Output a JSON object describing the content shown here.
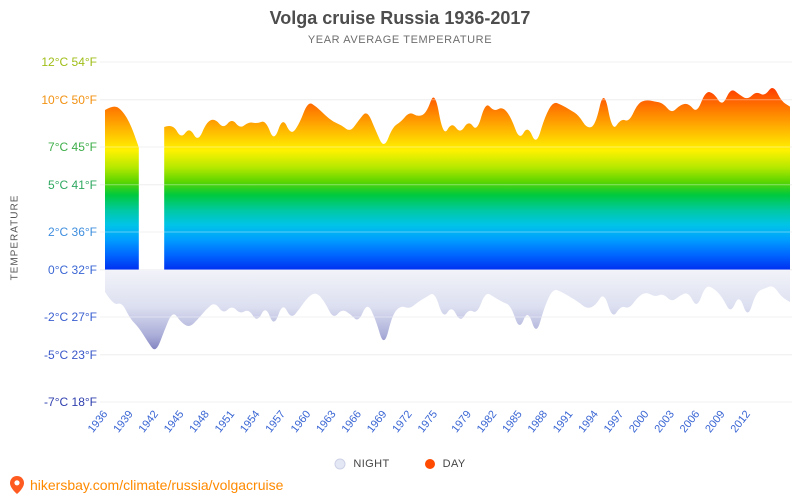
{
  "title": "Volga cruise Russia 1936-2017",
  "subtitle": "YEAR AVERAGE TEMPERATURE",
  "y_axis_label": "TEMPERATURE",
  "legend": {
    "night": {
      "label": "NIGHT",
      "color": "#e4e7f4"
    },
    "day": {
      "label": "DAY",
      "color": "#ff4a00"
    }
  },
  "footer": {
    "icon": "location-pin-icon",
    "text": "hikersbay.com/climate/russia/volgacruise",
    "text_color": "#ff8a00",
    "pin_color": "#ff5a1f"
  },
  "chart_data": {
    "type": "area",
    "title": "Volga cruise Russia 1936-2017",
    "subtitle": "YEAR AVERAGE TEMPERATURE",
    "x_range": [
      1936,
      2017
    ],
    "x_tick_labels": [
      "1936",
      "1939",
      "1942",
      "1945",
      "1948",
      "1951",
      "1954",
      "1957",
      "1960",
      "1963",
      "1966",
      "1969",
      "1972",
      "1975",
      "1979",
      "1982",
      "1985",
      "1988",
      "1991",
      "1994",
      "1997",
      "2000",
      "2003",
      "2006",
      "2009",
      "2012"
    ],
    "x_tick_color": "#3a66d4",
    "grid": true,
    "legend_position": "bottom",
    "y_axis": {
      "scale_note": "linear in Fahrenheit",
      "ylim_f": [
        18,
        54
      ],
      "ticks": [
        {
          "celsius": "12°C",
          "fahrenheit": "54°F",
          "f": 54,
          "color": "#9fbe17"
        },
        {
          "celsius": "10°C",
          "fahrenheit": "50°F",
          "f": 50,
          "color": "#f29111"
        },
        {
          "celsius": "7°C",
          "fahrenheit": "45°F",
          "f": 45,
          "color": "#3dae49"
        },
        {
          "celsius": "5°C",
          "fahrenheit": "41°F",
          "f": 41,
          "color": "#2ea860"
        },
        {
          "celsius": "2°C",
          "fahrenheit": "36°F",
          "f": 36,
          "color": "#3e8ede"
        },
        {
          "celsius": "0°C",
          "fahrenheit": "32°F",
          "f": 32,
          "color": "#3a66d4"
        },
        {
          "celsius": "-2°C",
          "fahrenheit": "27°F",
          "f": 27,
          "color": "#3a5fd0"
        },
        {
          "celsius": "-5°C",
          "fahrenheit": "23°F",
          "f": 23,
          "color": "#3a57c9"
        },
        {
          "celsius": "-7°C",
          "fahrenheit": "18°F",
          "f": 18,
          "color": "#2e3fae"
        }
      ]
    },
    "missing_day_data_years": [
      1941,
      1942
    ],
    "series": [
      {
        "name": "DAY",
        "unit": "°C",
        "fill": "rainbow-gradient",
        "values": [
          9.4,
          9.7,
          9.4,
          8.6,
          7.2,
          null,
          null,
          8.4,
          8.6,
          7.7,
          8.4,
          7.5,
          8.7,
          8.9,
          8.3,
          8.9,
          8.3,
          8.7,
          8.6,
          8.8,
          7.5,
          9.0,
          7.9,
          8.6,
          9.9,
          9.6,
          9.1,
          8.7,
          8.5,
          8.1,
          8.8,
          9.4,
          8.2,
          7.1,
          8.4,
          8.7,
          9.3,
          9.0,
          9.2,
          10.6,
          7.8,
          8.7,
          8.0,
          8.8,
          8.1,
          9.9,
          9.3,
          9.6,
          9.0,
          7.6,
          8.5,
          7.3,
          9.0,
          9.9,
          9.7,
          9.4,
          9.1,
          8.3,
          8.5,
          10.7,
          8.1,
          8.9,
          8.7,
          9.8,
          10.0,
          9.9,
          9.8,
          9.2,
          9.7,
          9.8,
          9.2,
          10.5,
          10.4,
          9.6,
          10.7,
          10.3,
          10.0,
          10.5,
          10.2,
          10.9,
          9.9,
          9.6
        ]
      },
      {
        "name": "NIGHT",
        "unit": "°C",
        "fill": "night-purple-gradient",
        "values": [
          -1.3,
          -2.1,
          -1.9,
          -2.9,
          -3.4,
          -4.2,
          -4.9,
          -3.6,
          -2.4,
          -3.1,
          -3.4,
          -2.9,
          -2.3,
          -1.9,
          -2.6,
          -2.1,
          -2.6,
          -2.3,
          -3.1,
          -2.1,
          -3.4,
          -1.9,
          -2.9,
          -2.3,
          -1.6,
          -1.3,
          -1.9,
          -2.9,
          -2.3,
          -2.6,
          -3.1,
          -1.9,
          -2.9,
          -4.6,
          -2.6,
          -2.1,
          -2.3,
          -1.9,
          -1.6,
          -1.3,
          -2.9,
          -2.1,
          -3.1,
          -2.3,
          -2.6,
          -1.3,
          -1.6,
          -1.9,
          -2.1,
          -3.6,
          -2.3,
          -3.9,
          -2.1,
          -1.1,
          -1.3,
          -1.6,
          -1.9,
          -2.3,
          -2.1,
          -1.3,
          -2.9,
          -2.1,
          -2.3,
          -1.6,
          -1.3,
          -1.6,
          -1.4,
          -1.9,
          -1.5,
          -1.3,
          -2.3,
          -0.9,
          -1.1,
          -1.6,
          -2.6,
          -1.4,
          -2.9,
          -1.3,
          -1.1,
          -0.9,
          -1.6,
          -1.9
        ]
      }
    ]
  }
}
